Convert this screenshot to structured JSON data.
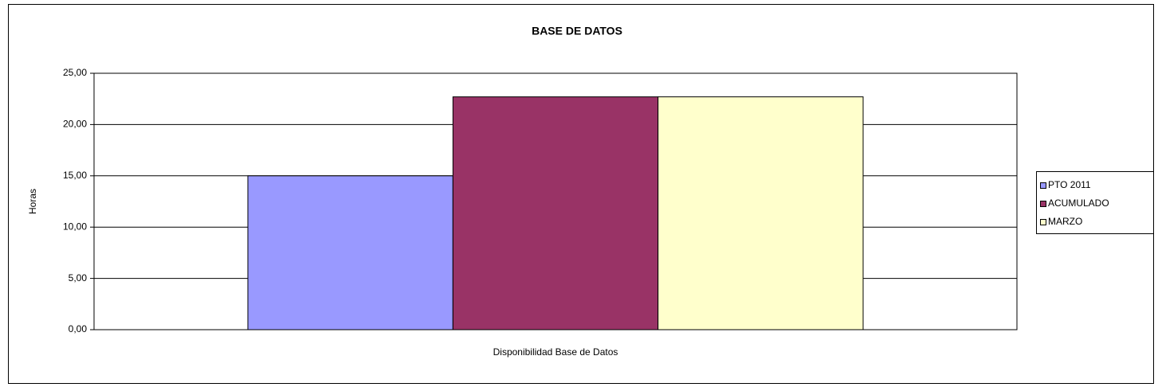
{
  "chart_data": {
    "type": "bar",
    "title": "BASE DE DATOS",
    "ylabel": "Horas",
    "categories": [
      "Disponibilidad Base de Datos"
    ],
    "series": [
      {
        "name": "PTO 2011",
        "color": "#9999ff",
        "values": [
          15
        ]
      },
      {
        "name": "ACUMULADO",
        "color": "#993366",
        "values": [
          22.7
        ]
      },
      {
        "name": "MARZO",
        "color": "#ffffcc",
        "values": [
          22.7
        ]
      }
    ],
    "ylim": [
      0,
      25
    ],
    "yticks": [
      {
        "value": 0,
        "label": "0,00"
      },
      {
        "value": 5,
        "label": "5,00"
      },
      {
        "value": 10,
        "label": "10,00"
      },
      {
        "value": 15,
        "label": "15,00"
      },
      {
        "value": 20,
        "label": "20,00"
      },
      {
        "value": 25,
        "label": "25,00"
      }
    ],
    "grid": true,
    "legend": "right"
  }
}
